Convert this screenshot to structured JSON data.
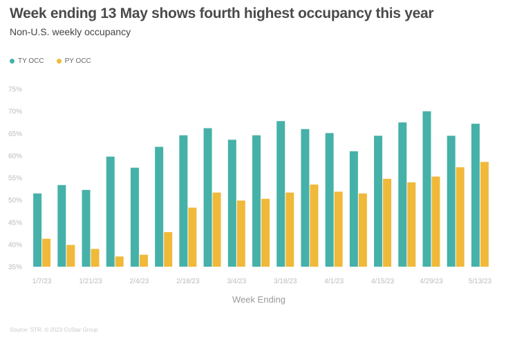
{
  "title": "Week ending 13 May shows fourth highest occupancy this year",
  "subtitle": "Non-U.S. weekly occupancy",
  "source": "Source: STR. © 2023 CoStar Group",
  "colors": {
    "ty": "#46b1a9",
    "py": "#f0b93a"
  },
  "chart_data": {
    "type": "bar",
    "title": "Week ending 13 May shows fourth highest occupancy this year",
    "subtitle": "Non-U.S. weekly occupancy",
    "xlabel": "Week Ending",
    "ylabel": "",
    "ylim": [
      35,
      75
    ],
    "yticks": [
      "35%",
      "40%",
      "45%",
      "50%",
      "55%",
      "60%",
      "65%",
      "70%",
      "75%"
    ],
    "legend": "top-left",
    "categories": [
      "1/7/23",
      "1/14/23",
      "1/21/23",
      "1/28/23",
      "2/4/23",
      "2/11/23",
      "2/18/23",
      "2/25/23",
      "3/4/23",
      "3/11/23",
      "3/18/23",
      "3/25/23",
      "4/1/23",
      "4/8/23",
      "4/15/23",
      "4/22/23",
      "4/29/23",
      "5/6/23",
      "5/13/23"
    ],
    "xtick_labels": [
      "1/7/23",
      "",
      "1/21/23",
      "",
      "2/4/23",
      "",
      "2/18/23",
      "",
      "3/4/23",
      "",
      "3/18/23",
      "",
      "4/1/23",
      "",
      "4/15/23",
      "",
      "4/29/23",
      "",
      "5/13/23"
    ],
    "series": [
      {
        "name": "TY OCC",
        "values": [
          51.5,
          53.4,
          52.3,
          59.8,
          57.3,
          62.0,
          64.6,
          66.2,
          63.6,
          64.6,
          67.8,
          66.0,
          65.1,
          61.0,
          64.5,
          67.5,
          70.0,
          64.5,
          67.2
        ]
      },
      {
        "name": "PY OCC",
        "values": [
          41.3,
          39.9,
          39.0,
          37.3,
          37.7,
          42.8,
          48.3,
          51.7,
          49.9,
          50.3,
          51.7,
          53.5,
          51.9,
          51.5,
          54.8,
          54.0,
          55.3,
          57.4,
          58.6
        ]
      }
    ]
  }
}
